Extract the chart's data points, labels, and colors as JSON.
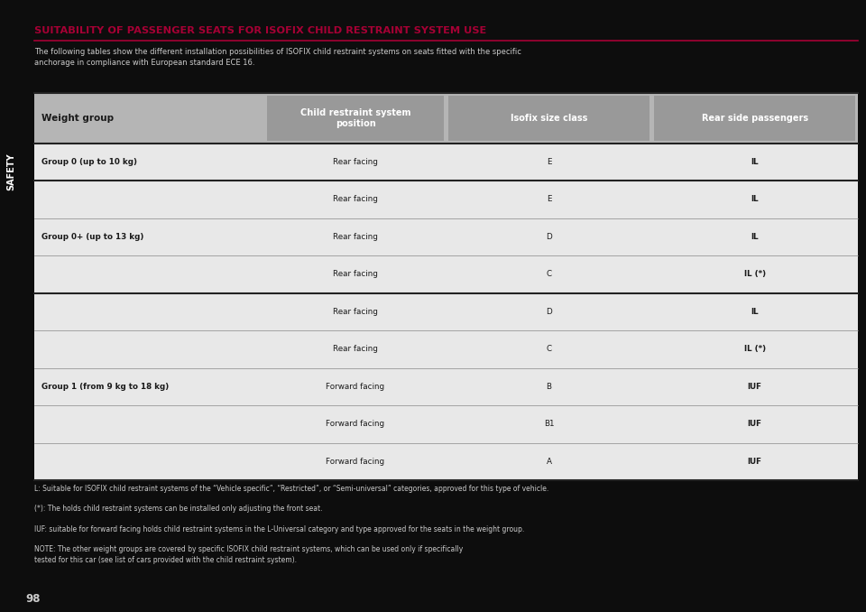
{
  "title": "SUITABILITY OF PASSENGER SEATS FOR ISOFIX CHILD RESTRAINT SYSTEM USE",
  "subtitle": "The following tables show the different installation possibilities of ISOFIX child restraint systems on seats fitted with the specific\nanchorage in compliance with European standard ECE 16.",
  "header_cols": [
    "Weight group",
    "Child restraint system\nposition",
    "Isofix size class",
    "Rear side passengers"
  ],
  "rows": [
    [
      "Group 0 (up to 10 kg)",
      "Rear facing",
      "E",
      "IL"
    ],
    [
      "",
      "Rear facing",
      "E",
      "IL"
    ],
    [
      "Group 0+ (up to 13 kg)",
      "Rear facing",
      "D",
      "IL"
    ],
    [
      "",
      "Rear facing",
      "C",
      "IL (*)"
    ],
    [
      "",
      "Rear facing",
      "D",
      "IL"
    ],
    [
      "",
      "Rear facing",
      "C",
      "IL (*)"
    ],
    [
      "Group 1 (from 9 kg to 18 kg)",
      "Forward facing",
      "B",
      "IUF"
    ],
    [
      "",
      "Forward facing",
      "B1",
      "IUF"
    ],
    [
      "",
      "Forward facing",
      "A",
      "IUF"
    ]
  ],
  "footnotes": [
    "L: Suitable for ISOFIX child restraint systems of the “Vehicle specific”, “Restricted”, or “Semi-universal” categories, approved for this type of vehicle.",
    "(*): The holds child restraint systems can be installed only adjusting the front seat.",
    "IUF: suitable for forward facing holds child restraint systems in the L-Universal category and type approved for the seats in the weight group.",
    "NOTE: The other weight groups are covered by specific ISOFIX child restraint systems, which can be used only if specifically\ntested for this car (see list of cars provided with the child restraint system)."
  ],
  "bg_color": "#0d0d0d",
  "header_bg": "#b5b5b5",
  "header_dark_bg": "#999999",
  "table_row_bg": "#e8e8e8",
  "title_color": "#a50034",
  "text_color": "#1a1a1a",
  "sidebar_color": "#a50034",
  "row_line_color": "#888888",
  "group_line_color": "#222222",
  "page_number": "98"
}
